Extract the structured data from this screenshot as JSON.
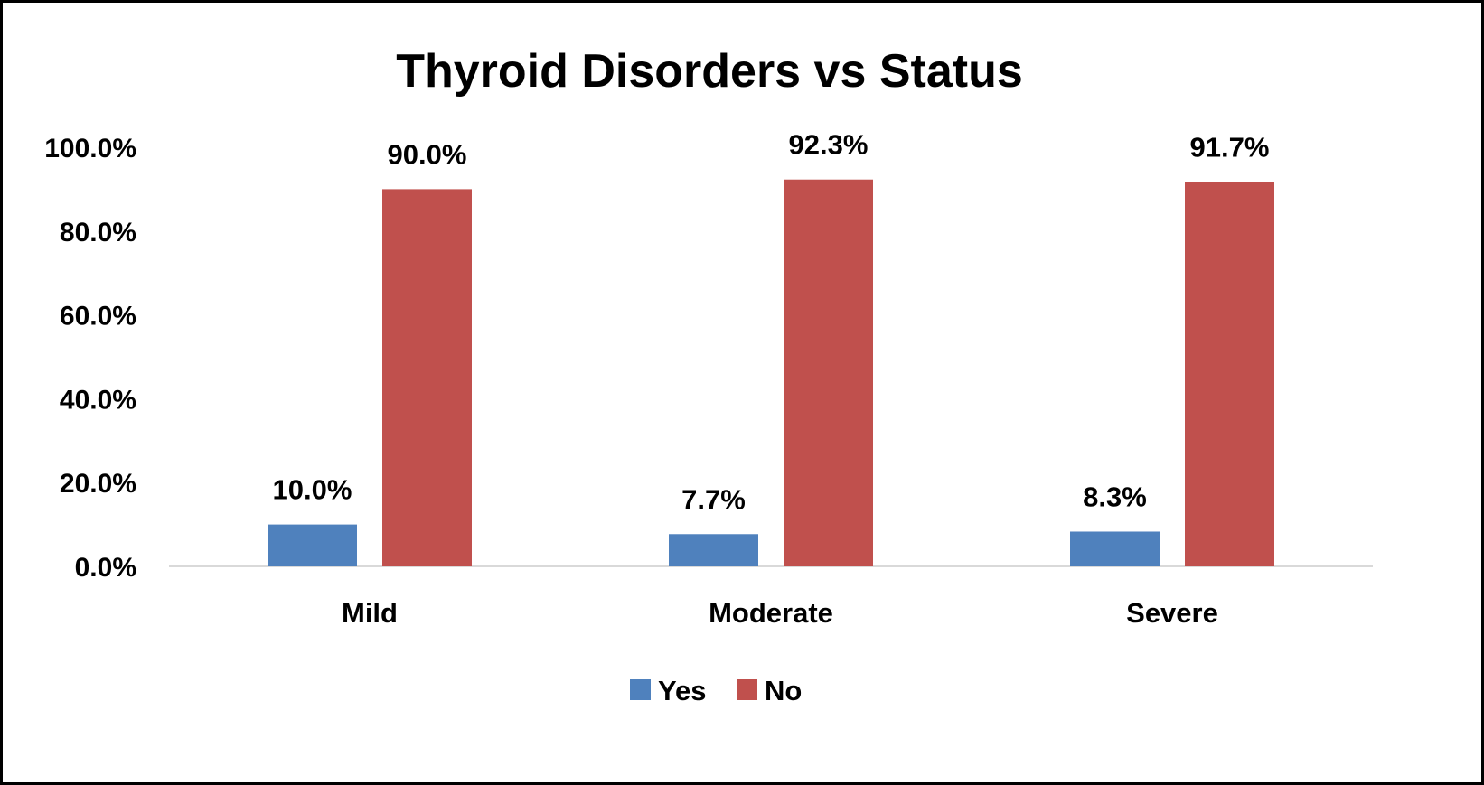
{
  "chart_data": {
    "type": "bar",
    "title": "Thyroid Disorders vs Status",
    "categories": [
      "Mild",
      "Moderate",
      "Severe"
    ],
    "series": [
      {
        "name": "Yes",
        "values": [
          10.0,
          7.7,
          8.3
        ],
        "labels": [
          "10.0%",
          "7.7%",
          "8.3%"
        ],
        "color": "#4F81BD"
      },
      {
        "name": "No",
        "values": [
          90.0,
          92.3,
          91.7
        ],
        "labels": [
          "90.0%",
          "92.3%",
          "91.7%"
        ],
        "color": "#C0504D"
      }
    ],
    "ylim": [
      0,
      100
    ],
    "yticks": [
      0,
      20,
      40,
      60,
      80,
      100
    ],
    "ytick_labels": [
      "0.0%",
      "20.0%",
      "40.0%",
      "60.0%",
      "80.0%",
      "100.0%"
    ],
    "grid": false,
    "legend_position": "bottom",
    "xlabel": "",
    "ylabel": ""
  }
}
